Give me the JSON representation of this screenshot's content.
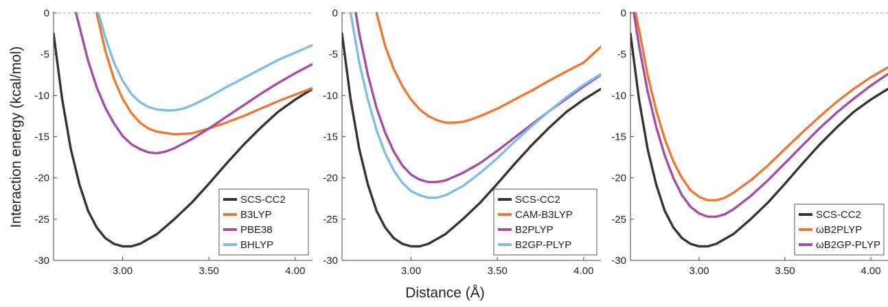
{
  "figure": {
    "ylabel": "Interaction energy (kcal/mol)",
    "xlabel": "Distance (Å)"
  },
  "chart_data": [
    {
      "type": "line",
      "xlim": [
        2.6,
        4.1
      ],
      "ylim": [
        -30,
        0
      ],
      "xticks": [
        3.0,
        3.5,
        4.0
      ],
      "xtick_labels": [
        "3.00",
        "3.50",
        "4.00"
      ],
      "yticks": [
        0,
        -5,
        -10,
        -15,
        -20,
        -25,
        -30
      ],
      "ytick_labels": [
        "0",
        "-5",
        "-10",
        "-15",
        "-20",
        "-25",
        "-30"
      ],
      "zero_line": true,
      "legend_position": "bottom-right",
      "series": [
        {
          "name": "SCS-CC2",
          "color": "#333333",
          "x": [
            2.6,
            2.65,
            2.7,
            2.75,
            2.8,
            2.85,
            2.9,
            2.95,
            3.0,
            3.05,
            3.1,
            3.2,
            3.3,
            3.4,
            3.5,
            3.6,
            3.7,
            3.8,
            3.9,
            4.0,
            4.1
          ],
          "y": [
            -2.5,
            -10.5,
            -16.5,
            -20.8,
            -24.0,
            -26.0,
            -27.3,
            -28.0,
            -28.3,
            -28.3,
            -28.0,
            -26.8,
            -25.0,
            -23.0,
            -20.7,
            -18.3,
            -16.0,
            -13.9,
            -12.0,
            -10.5,
            -9.2
          ]
        },
        {
          "name": "B3LYP",
          "color": "#ee7733",
          "x": [
            2.85,
            2.9,
            2.95,
            3.0,
            3.05,
            3.1,
            3.15,
            3.2,
            3.3,
            3.4,
            3.5,
            3.6,
            3.7,
            3.8,
            3.9,
            4.0,
            4.1
          ],
          "y": [
            0.0,
            -4.6,
            -8.0,
            -10.4,
            -12.1,
            -13.3,
            -14.0,
            -14.4,
            -14.7,
            -14.6,
            -14.0,
            -13.3,
            -12.5,
            -11.6,
            -10.7,
            -9.9,
            -9.1
          ]
        },
        {
          "name": "PBE38",
          "color": "#a64ca6",
          "x": [
            2.73,
            2.8,
            2.85,
            2.9,
            2.95,
            3.0,
            3.05,
            3.1,
            3.15,
            3.2,
            3.25,
            3.3,
            3.4,
            3.5,
            3.6,
            3.7,
            3.8,
            3.9,
            4.0,
            4.1
          ],
          "y": [
            0.0,
            -5.8,
            -9.0,
            -11.5,
            -13.4,
            -14.9,
            -15.9,
            -16.5,
            -16.9,
            -17.0,
            -16.8,
            -16.4,
            -15.3,
            -14.0,
            -12.6,
            -11.2,
            -9.8,
            -8.5,
            -7.3,
            -6.2
          ]
        },
        {
          "name": "BHLYP",
          "color": "#7fbce8",
          "x": [
            2.86,
            2.9,
            2.95,
            3.0,
            3.05,
            3.1,
            3.15,
            3.2,
            3.25,
            3.3,
            3.35,
            3.4,
            3.5,
            3.6,
            3.7,
            3.8,
            3.9,
            4.0,
            4.1
          ],
          "y": [
            0.0,
            -3.0,
            -6.0,
            -8.2,
            -9.8,
            -10.8,
            -11.4,
            -11.7,
            -11.8,
            -11.8,
            -11.6,
            -11.2,
            -10.2,
            -9.0,
            -7.9,
            -6.8,
            -5.7,
            -4.8,
            -3.9
          ]
        }
      ]
    },
    {
      "type": "line",
      "xlim": [
        2.6,
        4.1
      ],
      "ylim": [
        -30,
        0
      ],
      "xticks": [
        3.0,
        3.5,
        4.0
      ],
      "xtick_labels": [
        "3.00",
        "3.50",
        "4.00"
      ],
      "yticks": [
        0,
        -5,
        -10,
        -15,
        -20,
        -25,
        -30
      ],
      "ytick_labels": [
        "0",
        "-5",
        "-10",
        "-15",
        "-20",
        "-25",
        "-30"
      ],
      "zero_line": true,
      "legend_position": "bottom-right",
      "series": [
        {
          "name": "SCS-CC2",
          "color": "#333333",
          "x": [
            2.6,
            2.65,
            2.7,
            2.75,
            2.8,
            2.85,
            2.9,
            2.95,
            3.0,
            3.05,
            3.1,
            3.2,
            3.3,
            3.4,
            3.5,
            3.6,
            3.7,
            3.8,
            3.9,
            4.0,
            4.1
          ],
          "y": [
            -2.5,
            -10.5,
            -16.5,
            -20.8,
            -24.0,
            -26.0,
            -27.3,
            -28.0,
            -28.3,
            -28.3,
            -28.0,
            -26.8,
            -25.0,
            -23.0,
            -20.7,
            -18.3,
            -16.0,
            -13.9,
            -12.0,
            -10.5,
            -9.2
          ]
        },
        {
          "name": "CAM-B3LYP",
          "color": "#ee7733",
          "x": [
            2.8,
            2.85,
            2.9,
            2.95,
            3.0,
            3.05,
            3.1,
            3.15,
            3.2,
            3.25,
            3.3,
            3.35,
            3.4,
            3.5,
            3.6,
            3.7,
            3.8,
            3.9,
            4.0,
            4.1
          ],
          "y": [
            0.0,
            -4.0,
            -6.8,
            -8.9,
            -10.5,
            -11.7,
            -12.5,
            -13.0,
            -13.3,
            -13.3,
            -13.2,
            -12.9,
            -12.5,
            -11.6,
            -10.5,
            -9.4,
            -8.2,
            -7.1,
            -6.0,
            -4.1
          ]
        },
        {
          "name": "B2PLYP",
          "color": "#a64ca6",
          "x": [
            2.68,
            2.7,
            2.75,
            2.8,
            2.85,
            2.9,
            2.95,
            3.0,
            3.05,
            3.1,
            3.15,
            3.2,
            3.3,
            3.4,
            3.5,
            3.6,
            3.7,
            3.8,
            3.9,
            4.0,
            4.1
          ],
          "y": [
            0.0,
            -2.5,
            -7.5,
            -11.5,
            -14.5,
            -16.8,
            -18.5,
            -19.6,
            -20.2,
            -20.5,
            -20.5,
            -20.3,
            -19.4,
            -18.2,
            -16.7,
            -15.1,
            -13.5,
            -11.9,
            -10.4,
            -8.9,
            -7.5
          ]
        },
        {
          "name": "B2GP-PLYP",
          "color": "#7fbce8",
          "x": [
            2.65,
            2.7,
            2.75,
            2.8,
            2.85,
            2.9,
            2.95,
            3.0,
            3.05,
            3.1,
            3.15,
            3.2,
            3.3,
            3.4,
            3.5,
            3.6,
            3.7,
            3.8,
            3.9,
            4.0,
            4.1
          ],
          "y": [
            0.0,
            -6.0,
            -10.5,
            -14.2,
            -17.0,
            -19.1,
            -20.6,
            -21.6,
            -22.1,
            -22.4,
            -22.4,
            -22.1,
            -21.0,
            -19.4,
            -17.6,
            -15.6,
            -13.7,
            -11.9,
            -10.2,
            -8.7,
            -7.4
          ]
        }
      ]
    },
    {
      "type": "line",
      "xlim": [
        2.6,
        4.1
      ],
      "ylim": [
        -30,
        0
      ],
      "xticks": [
        3.0,
        3.5,
        4.0
      ],
      "xtick_labels": [
        "3.00",
        "3.50",
        "4.00"
      ],
      "yticks": [
        0,
        -5,
        -10,
        -15,
        -20,
        -25,
        -30
      ],
      "ytick_labels": [
        "0",
        "-5",
        "-10",
        "-15",
        "-20",
        "-25",
        "-30"
      ],
      "zero_line": true,
      "legend_position": "bottom-right",
      "series": [
        {
          "name": "SCS-CC2",
          "color": "#333333",
          "x": [
            2.6,
            2.65,
            2.7,
            2.75,
            2.8,
            2.85,
            2.9,
            2.95,
            3.0,
            3.05,
            3.1,
            3.2,
            3.3,
            3.4,
            3.5,
            3.6,
            3.7,
            3.8,
            3.9,
            4.0,
            4.1
          ],
          "y": [
            -2.5,
            -10.5,
            -16.5,
            -20.8,
            -24.0,
            -26.0,
            -27.3,
            -28.0,
            -28.3,
            -28.3,
            -28.0,
            -26.8,
            -25.0,
            -23.0,
            -20.7,
            -18.3,
            -16.0,
            -13.9,
            -12.0,
            -10.5,
            -9.2
          ]
        },
        {
          "name": "ωB2PLYP",
          "color": "#ee7733",
          "x": [
            2.63,
            2.65,
            2.7,
            2.75,
            2.8,
            2.85,
            2.9,
            2.95,
            3.0,
            3.05,
            3.1,
            3.15,
            3.2,
            3.3,
            3.4,
            3.5,
            3.6,
            3.7,
            3.8,
            3.9,
            4.0,
            4.1
          ],
          "y": [
            0.0,
            -2.0,
            -7.5,
            -11.8,
            -15.3,
            -18.0,
            -20.0,
            -21.5,
            -22.3,
            -22.7,
            -22.7,
            -22.4,
            -21.8,
            -20.3,
            -18.5,
            -16.5,
            -14.5,
            -12.6,
            -10.8,
            -9.2,
            -7.8,
            -6.6
          ]
        },
        {
          "name": "ωB2GP-PLYP",
          "color": "#a64ca6",
          "x": [
            2.62,
            2.65,
            2.7,
            2.75,
            2.8,
            2.85,
            2.9,
            2.95,
            3.0,
            3.05,
            3.1,
            3.15,
            3.2,
            3.3,
            3.4,
            3.5,
            3.6,
            3.7,
            3.8,
            3.9,
            4.0,
            4.1
          ],
          "y": [
            0.0,
            -4.0,
            -9.5,
            -13.8,
            -17.3,
            -20.0,
            -22.1,
            -23.5,
            -24.3,
            -24.7,
            -24.7,
            -24.4,
            -23.8,
            -22.2,
            -20.3,
            -18.2,
            -16.1,
            -14.0,
            -12.1,
            -10.4,
            -8.8,
            -7.4
          ]
        }
      ]
    }
  ]
}
